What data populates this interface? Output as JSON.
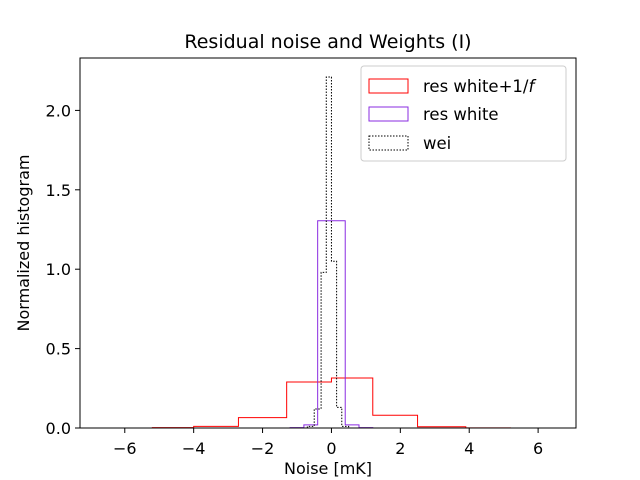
{
  "chart_data": {
    "type": "histogram-step",
    "title": "Residual noise and Weights (I)",
    "xlabel": "Noise [mK]",
    "ylabel": "Normalized histogram",
    "xlim": [
      -7.3,
      7.1
    ],
    "ylim": [
      0.0,
      2.33
    ],
    "xticks": [
      -6,
      -4,
      -2,
      0,
      2,
      4,
      6
    ],
    "xtick_labels": [
      "−6",
      "−4",
      "−2",
      "0",
      "2",
      "4",
      "6"
    ],
    "yticks": [
      0.0,
      0.5,
      1.0,
      1.5,
      2.0
    ],
    "ytick_labels": [
      "0.0",
      "0.5",
      "1.0",
      "1.5",
      "2.0"
    ],
    "legend": {
      "placement": "top-right"
    },
    "series": [
      {
        "name": "res white+1/f",
        "legend_prefix": "res white+1/",
        "legend_italic": "f",
        "color": "#ff0000",
        "style": "solid",
        "edges": [
          -6.6,
          -5.2,
          -4.0,
          -2.7,
          -1.3,
          0.0,
          1.2,
          2.5,
          3.9,
          5.2,
          6.4
        ],
        "heights": [
          0.0,
          0.002,
          0.01,
          0.065,
          0.29,
          0.315,
          0.08,
          0.008,
          0.001,
          0.0
        ]
      },
      {
        "name": "res white",
        "color": "#8a2be2",
        "style": "solid",
        "edges": [
          -1.2,
          -0.8,
          -0.4,
          0.4,
          0.8,
          1.2
        ],
        "heights": [
          0.002,
          0.02,
          1.305,
          0.02,
          0.002
        ]
      },
      {
        "name": "wei",
        "color": "#000000",
        "style": "dotted",
        "edges": [
          -0.7,
          -0.5,
          -0.3,
          -0.15,
          0.0,
          0.15,
          0.3,
          0.5,
          0.7
        ],
        "heights": [
          0.01,
          0.12,
          0.98,
          2.21,
          1.05,
          0.13,
          0.01,
          0.0
        ]
      }
    ]
  }
}
